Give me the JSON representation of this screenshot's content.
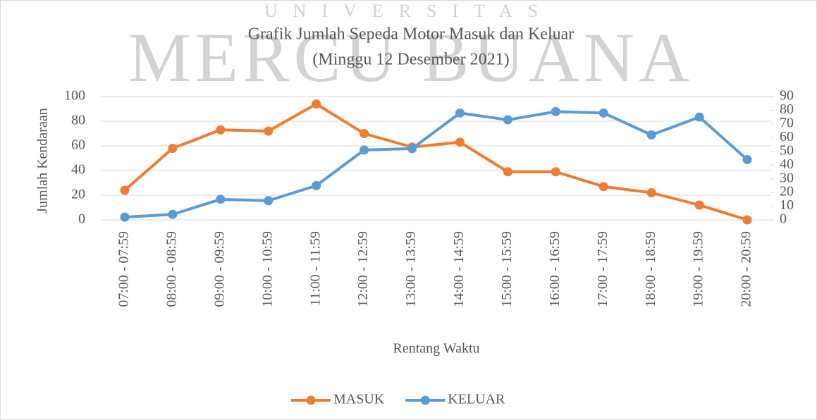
{
  "chart_data": {
    "type": "line",
    "title": "Grafik Jumlah Sepeda Motor Masuk dan Keluar",
    "subtitle": "(Minggu 12 Desember 2021)",
    "watermark": [
      "UNIVERSITAS",
      "MERCU BUANA"
    ],
    "x_label": "Rentang Waktu",
    "y_label": "Jumlah Kendaraan",
    "categories": [
      "07:00 - 07:59",
      "08:00 - 08:59",
      "09:00 - 09:59",
      "10:00 - 10:59",
      "11:00 - 11:59",
      "12:00 - 12:59",
      "13:00 - 13:59",
      "14:00 - 14:59",
      "15:00 - 15:59",
      "16:00 - 16:59",
      "17:00 - 17:59",
      "18:00 - 18:59",
      "19:00 - 19:59",
      "20:00 - 20:59"
    ],
    "series": [
      {
        "name": "MASUK",
        "color": "#ed7d31",
        "values": [
          24,
          58,
          73,
          72,
          94,
          70,
          59,
          63,
          39,
          39,
          27,
          22,
          12,
          0
        ]
      },
      {
        "name": "KELUAR",
        "color": "#5b9bd5",
        "axis": "y2",
        "values": [
          2,
          4,
          15,
          14,
          25,
          51,
          52,
          78,
          73,
          79,
          78,
          62,
          75,
          44
        ]
      }
    ],
    "ylim": [
      0,
      100
    ],
    "yticks": [
      0,
      20,
      40,
      60,
      80,
      100
    ],
    "y2lim": [
      0,
      90
    ],
    "y2ticks": [
      0,
      10,
      20,
      30,
      40,
      50,
      60,
      70,
      80,
      90
    ],
    "grid": true,
    "legend": "bottom"
  }
}
